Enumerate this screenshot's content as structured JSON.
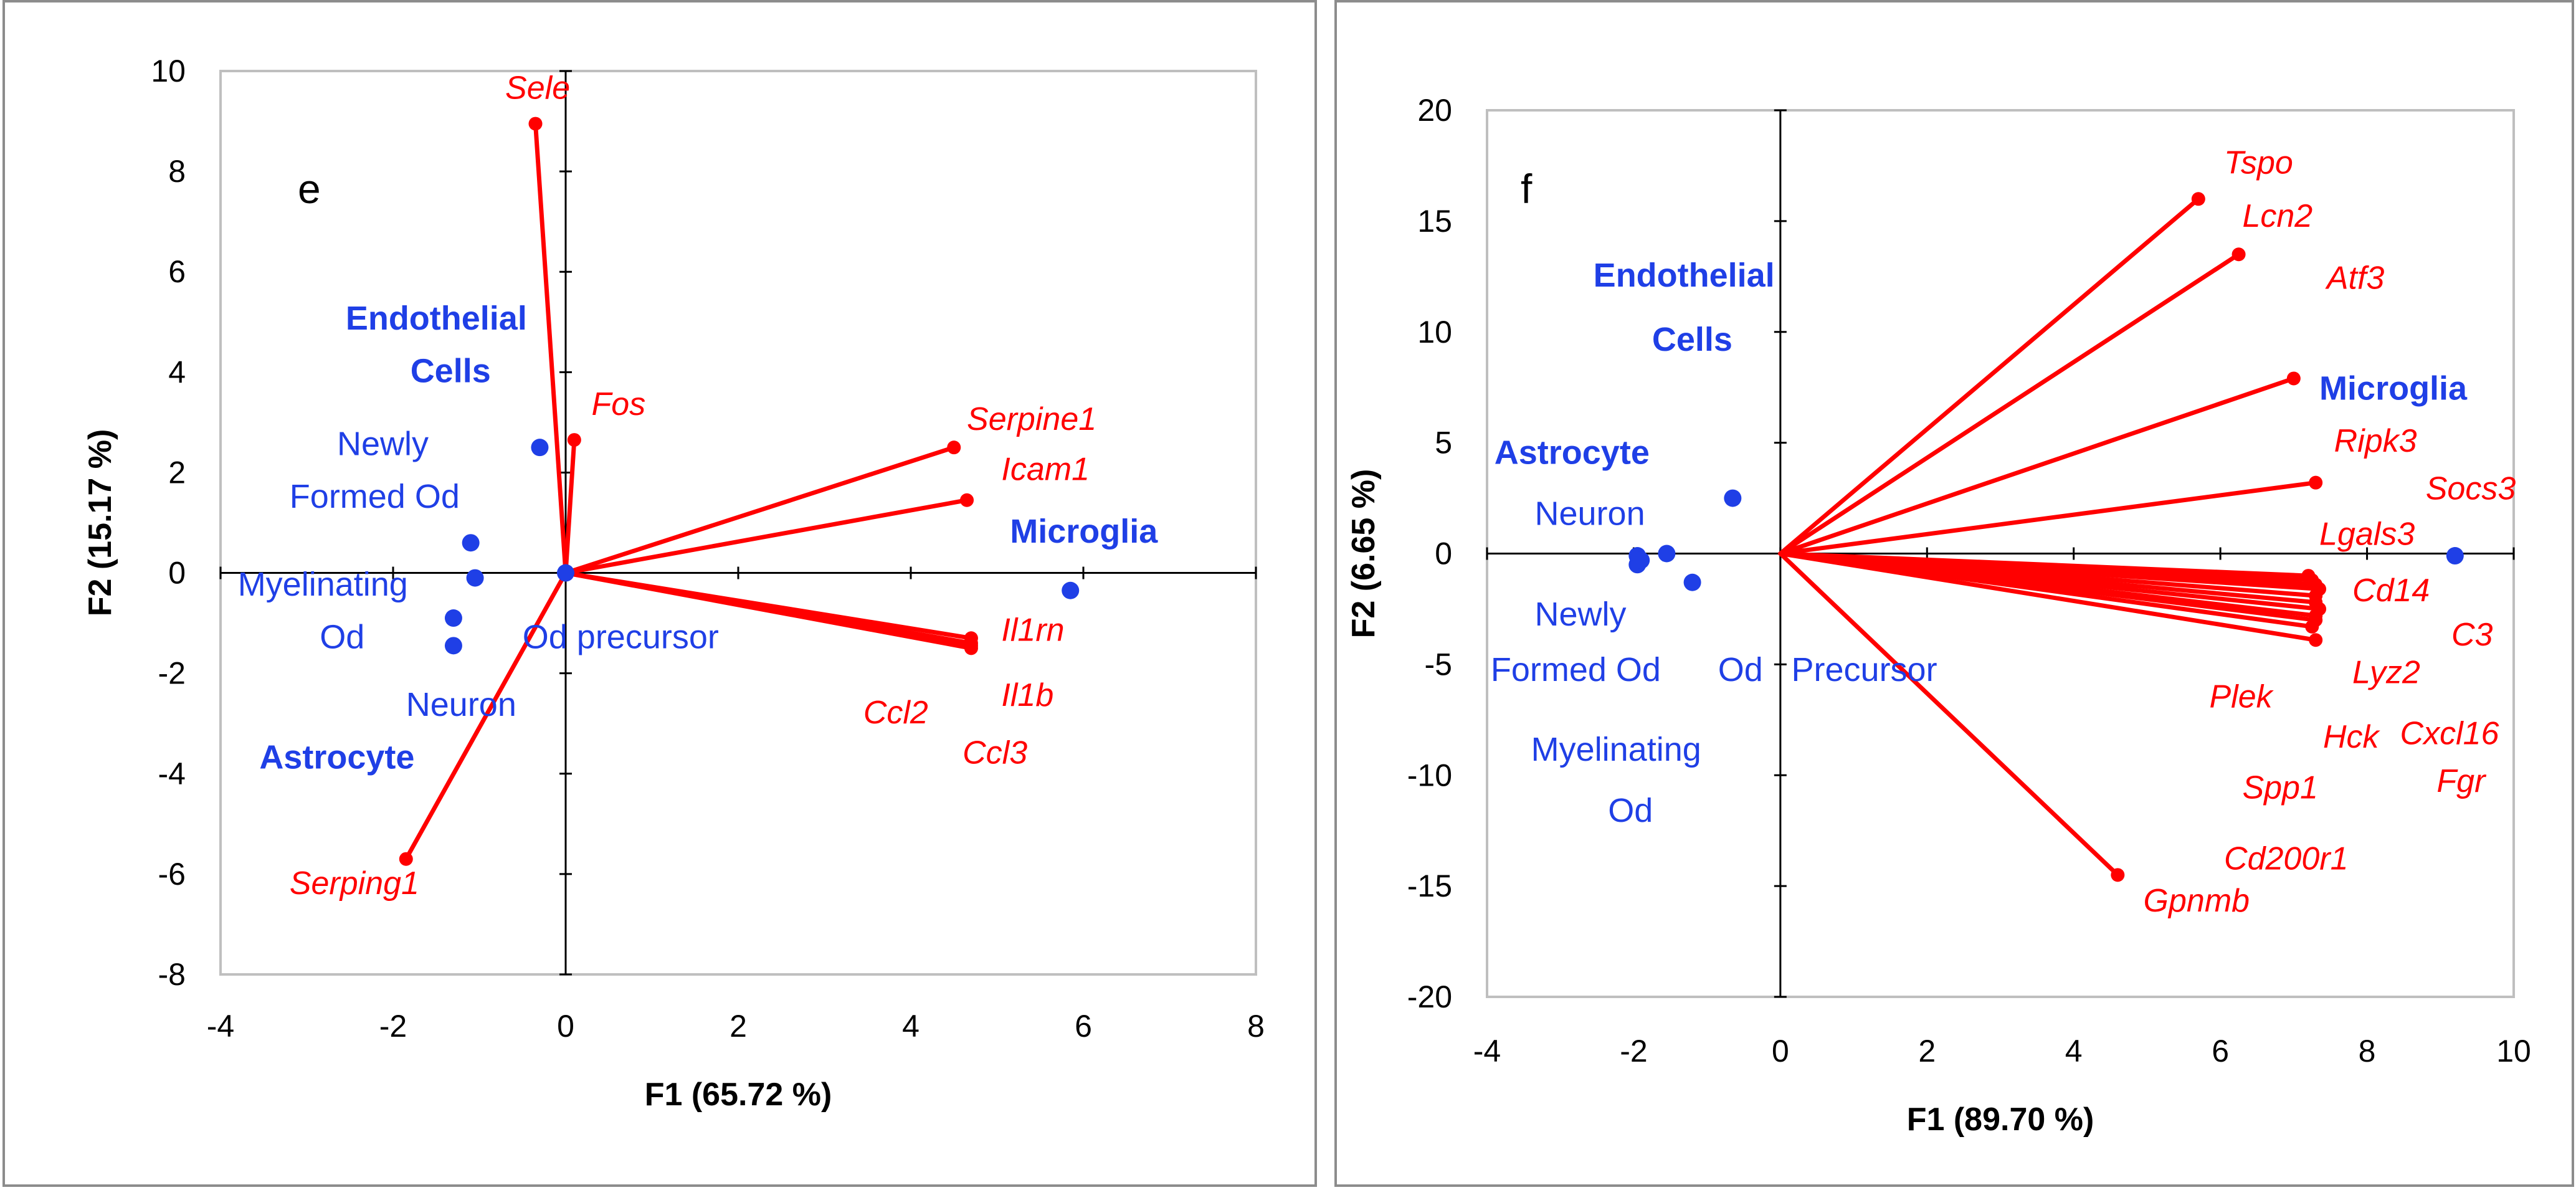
{
  "colors": {
    "vector": "#ff0000",
    "cell_point": "#1f3fe6",
    "axis": "#000000",
    "plot_frame": "#bfbfbf",
    "panel_border": "#8c8c8c"
  },
  "chart_data": [
    {
      "id": "e",
      "type": "scatter",
      "panel_label": "e",
      "xlabel": "F1 (65.72 %)",
      "ylabel": "F2 (15.17 %)",
      "xlim": [
        -4,
        8
      ],
      "ylim": [
        -8,
        10
      ],
      "x_ticks": [
        "-4",
        "-2",
        "0",
        "2",
        "4",
        "6",
        "8"
      ],
      "y_ticks": [
        "10",
        "8",
        "6",
        "4",
        "2",
        "0",
        "-2",
        "-4",
        "-6",
        "-8"
      ],
      "grid": false,
      "legend": "none",
      "series": [
        {
          "name": "Genes",
          "kind": "vectors",
          "color": "#ff0000",
          "points": [
            {
              "label": "Sele",
              "x": -0.35,
              "y": 8.95
            },
            {
              "label": "Fos",
              "x": 0.1,
              "y": 2.65
            },
            {
              "label": "Serpine1",
              "x": 4.5,
              "y": 2.5
            },
            {
              "label": "Icam1",
              "x": 4.65,
              "y": 1.45
            },
            {
              "label": "Il1rn",
              "x": 4.7,
              "y": -1.3
            },
            {
              "label": "Il1b",
              "x": 4.7,
              "y": -1.4
            },
            {
              "label": "Ccl2",
              "x": 4.7,
              "y": -1.45
            },
            {
              "label": "Ccl3",
              "x": 4.7,
              "y": -1.5
            },
            {
              "label": "Serping1",
              "x": -1.85,
              "y": -5.7
            }
          ]
        },
        {
          "name": "Cell types",
          "kind": "points",
          "color": "#1f3fe6",
          "points": [
            {
              "label": "Endothelial Cells",
              "x": -0.3,
              "y": 2.5
            },
            {
              "label": "Microglia",
              "x": 5.85,
              "y": -0.35
            },
            {
              "label": "Newly Formed Od",
              "x": -1.1,
              "y": 0.6
            },
            {
              "label": "Myelinating Od",
              "x": -1.05,
              "y": -0.1
            },
            {
              "label": "Neuron",
              "x": -1.3,
              "y": -0.9
            },
            {
              "label": "Astrocyte",
              "x": -1.3,
              "y": -1.45
            },
            {
              "label": "Od precursor",
              "x": 0,
              "y": 0
            }
          ]
        }
      ],
      "annotations": [
        {
          "text": "Sele",
          "kind": "gene",
          "x": -0.7,
          "y": 9.45
        },
        {
          "text": "Fos",
          "kind": "gene",
          "x": 0.3,
          "y": 3.15
        },
        {
          "text": "Serpine1",
          "kind": "gene",
          "x": 4.65,
          "y": 2.85
        },
        {
          "text": "Icam1",
          "kind": "gene",
          "x": 5.05,
          "y": 1.85
        },
        {
          "text": "Il1rn",
          "kind": "gene",
          "x": 5.05,
          "y": -1.35
        },
        {
          "text": "Il1b",
          "kind": "gene",
          "x": 5.05,
          "y": -2.65
        },
        {
          "text": "Ccl2",
          "kind": "gene",
          "x": 3.45,
          "y": -3.0
        },
        {
          "text": "Ccl3",
          "kind": "gene",
          "x": 4.6,
          "y": -3.8
        },
        {
          "text": "Serping1",
          "kind": "gene",
          "x": -3.2,
          "y": -6.4
        },
        {
          "text": "Endothelial",
          "kind": "cell_bold",
          "x": -2.55,
          "y": 4.85
        },
        {
          "text": "Cells",
          "kind": "cell_bold",
          "x": -1.8,
          "y": 3.8
        },
        {
          "text": "Microglia",
          "kind": "cell_bold",
          "x": 5.15,
          "y": 0.6
        },
        {
          "text": "Newly",
          "kind": "cell",
          "x": -2.65,
          "y": 2.35
        },
        {
          "text": "Formed Od",
          "kind": "cell",
          "x": -3.2,
          "y": 1.3
        },
        {
          "text": "Myelinating",
          "kind": "cell",
          "x": -3.8,
          "y": -0.45
        },
        {
          "text": "Od",
          "kind": "cell",
          "x": -2.85,
          "y": -1.5
        },
        {
          "text": "Od precursor",
          "kind": "cell",
          "x": -0.5,
          "y": -1.5
        },
        {
          "text": "Neuron",
          "kind": "cell",
          "x": -1.85,
          "y": -2.85
        },
        {
          "text": "Astrocyte",
          "kind": "cell_bold",
          "x": -3.55,
          "y": -3.9
        }
      ]
    },
    {
      "id": "f",
      "type": "scatter",
      "panel_label": "f",
      "xlabel": "F1 (89.70 %)",
      "ylabel": "F2 (6.65 %)",
      "xlim": [
        -4,
        10
      ],
      "ylim": [
        -20,
        20
      ],
      "x_ticks": [
        "-4",
        "-2",
        "0",
        "2",
        "4",
        "6",
        "8",
        "10"
      ],
      "y_ticks": [
        "20",
        "15",
        "10",
        "5",
        "0",
        "-5",
        "-10",
        "-15",
        "-20"
      ],
      "grid": false,
      "legend": "none",
      "series": [
        {
          "name": "Genes",
          "kind": "vectors",
          "color": "#ff0000",
          "points": [
            {
              "label": "Tspo",
              "x": 5.7,
              "y": 16.0
            },
            {
              "label": "Lcn2",
              "x": 6.25,
              "y": 13.5
            },
            {
              "label": "Atf3",
              "x": 7.0,
              "y": 7.9
            },
            {
              "label": "Ripk3",
              "x": 7.3,
              "y": 3.2
            },
            {
              "label": "Socs3",
              "x": 7.2,
              "y": -1.0
            },
            {
              "label": "Lgals3",
              "x": 7.25,
              "y": -1.2
            },
            {
              "label": "Cd14",
              "x": 7.3,
              "y": -1.4
            },
            {
              "label": "C3",
              "x": 7.35,
              "y": -1.6
            },
            {
              "label": "Lyz2",
              "x": 7.3,
              "y": -1.9
            },
            {
              "label": "Plek",
              "x": 7.3,
              "y": -2.2
            },
            {
              "label": "Hck",
              "x": 7.35,
              "y": -2.5
            },
            {
              "label": "Cxcl16",
              "x": 7.3,
              "y": -2.8
            },
            {
              "label": "Fgr",
              "x": 7.3,
              "y": -3.0
            },
            {
              "label": "Spp1",
              "x": 7.25,
              "y": -3.3
            },
            {
              "label": "Cd200r1",
              "x": 7.3,
              "y": -3.9
            },
            {
              "label": "Gpnmb",
              "x": 4.6,
              "y": -14.5
            }
          ]
        },
        {
          "name": "Cell types",
          "kind": "points",
          "color": "#1f3fe6",
          "points": [
            {
              "label": "Endothelial Cells",
              "x": -0.65,
              "y": 2.5
            },
            {
              "label": "Microglia",
              "x": 9.2,
              "y": -0.1
            },
            {
              "label": "Astrocyte",
              "x": -1.55,
              "y": 0.0
            },
            {
              "label": "Neuron",
              "x": -1.95,
              "y": -0.1
            },
            {
              "label": "Newly Formed Od",
              "x": -1.95,
              "y": -0.5
            },
            {
              "label": "Myelinating Od",
              "x": -1.2,
              "y": -1.3
            },
            {
              "label": "Od Precursor",
              "x": -1.9,
              "y": -0.3
            }
          ]
        }
      ],
      "annotations": [
        {
          "text": "Tspo",
          "kind": "gene",
          "x": 6.05,
          "y": 17.15
        },
        {
          "text": "Lcn2",
          "kind": "gene",
          "x": 6.3,
          "y": 14.75
        },
        {
          "text": "Atf3",
          "kind": "gene",
          "x": 7.45,
          "y": 11.95
        },
        {
          "text": "Ripk3",
          "kind": "gene",
          "x": 7.55,
          "y": 4.6
        },
        {
          "text": "Socs3",
          "kind": "gene",
          "x": 8.8,
          "y": 2.45
        },
        {
          "text": "Lgals3",
          "kind": "gene",
          "x": 7.35,
          "y": 0.4
        },
        {
          "text": "Cd14",
          "kind": "gene",
          "x": 7.8,
          "y": -2.15
        },
        {
          "text": "C3",
          "kind": "gene",
          "x": 9.15,
          "y": -4.15
        },
        {
          "text": "Lyz2",
          "kind": "gene",
          "x": 7.8,
          "y": -5.85
        },
        {
          "text": "Plek",
          "kind": "gene",
          "x": 5.85,
          "y": -6.95
        },
        {
          "text": "Hck",
          "kind": "gene",
          "x": 7.4,
          "y": -8.75
        },
        {
          "text": "Cxcl16",
          "kind": "gene",
          "x": 8.45,
          "y": -8.6
        },
        {
          "text": "Fgr",
          "kind": "gene",
          "x": 8.95,
          "y": -10.75
        },
        {
          "text": "Spp1",
          "kind": "gene",
          "x": 6.3,
          "y": -11.05
        },
        {
          "text": "Cd200r1",
          "kind": "gene",
          "x": 6.05,
          "y": -14.25
        },
        {
          "text": "Gpnmb",
          "kind": "gene",
          "x": 4.95,
          "y": -16.15
        },
        {
          "text": "Endothelial",
          "kind": "cell_bold",
          "x": -2.55,
          "y": 12.05
        },
        {
          "text": "Cells",
          "kind": "cell_bold",
          "x": -1.75,
          "y": 9.15
        },
        {
          "text": "Microglia",
          "kind": "cell_bold",
          "x": 7.35,
          "y": 6.95
        },
        {
          "text": "Astrocyte",
          "kind": "cell_bold",
          "x": -3.9,
          "y": 4.05
        },
        {
          "text": "Neuron",
          "kind": "cell",
          "x": -3.35,
          "y": 1.3
        },
        {
          "text": "Newly",
          "kind": "cell",
          "x": -3.35,
          "y": -3.25
        },
        {
          "text": "Formed Od",
          "kind": "cell",
          "x": -3.95,
          "y": -5.75
        },
        {
          "text": "Od",
          "kind": "cell",
          "x": -0.85,
          "y": -5.75
        },
        {
          "text": "Precursor",
          "kind": "cell",
          "x": 0.15,
          "y": -5.75
        },
        {
          "text": "Myelinating",
          "kind": "cell",
          "x": -3.4,
          "y": -9.35
        },
        {
          "text": "Od",
          "kind": "cell",
          "x": -2.35,
          "y": -12.1
        }
      ]
    }
  ]
}
